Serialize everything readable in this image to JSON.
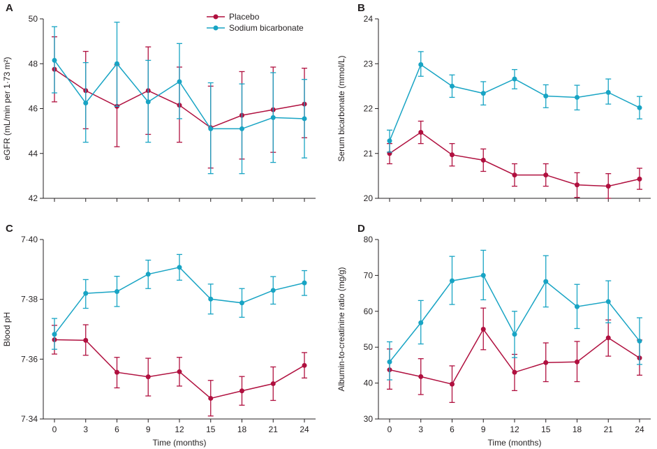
{
  "colors": {
    "placebo": "#b0103f",
    "bicarbonate": "#18a4c4",
    "axis": "#231f20"
  },
  "chart_data": [
    {
      "panel": "A",
      "type": "line",
      "ylabel": "eGFR (mL/min per 1·73 m²)",
      "xlabel": "",
      "ylim": [
        42,
        50
      ],
      "yticks": [
        42,
        44,
        46,
        48,
        50
      ],
      "ytick_labels": [
        "42",
        "44",
        "46",
        "48",
        "50"
      ],
      "legend": {
        "position": "top-center",
        "entries": [
          "Placebo",
          "Sodium bicarbonate"
        ]
      },
      "series": [
        {
          "name": "Placebo",
          "color": "placebo",
          "x": [
            0,
            3,
            6,
            9,
            12,
            15,
            18,
            21,
            24
          ],
          "y": [
            47.75,
            46.8,
            46.1,
            46.8,
            46.15,
            45.15,
            45.7,
            45.95,
            46.2
          ],
          "ci_low": [
            46.3,
            45.1,
            44.3,
            44.85,
            44.5,
            43.35,
            43.75,
            44.05,
            44.7
          ],
          "ci_high": [
            49.2,
            48.55,
            47.95,
            48.75,
            47.85,
            47.0,
            47.65,
            47.85,
            47.8
          ]
        },
        {
          "name": "Sodium bicarbonate",
          "color": "bicarbonate",
          "x": [
            0,
            3,
            6,
            9,
            12,
            15,
            18,
            21,
            24
          ],
          "y": [
            48.15,
            46.25,
            48.0,
            46.3,
            47.2,
            45.1,
            45.1,
            45.6,
            45.55
          ],
          "ci_low": [
            46.7,
            44.5,
            46.1,
            44.5,
            45.55,
            43.1,
            43.1,
            43.6,
            43.8
          ],
          "ci_high": [
            49.65,
            48.05,
            49.85,
            48.15,
            48.9,
            47.15,
            47.1,
            47.6,
            47.3
          ]
        }
      ]
    },
    {
      "panel": "B",
      "type": "line",
      "ylabel": "Serum bicarbonate (mmol/L)",
      "xlabel": "",
      "ylim": [
        20,
        24
      ],
      "yticks": [
        20,
        21,
        22,
        23,
        24
      ],
      "ytick_labels": [
        "20",
        "21",
        "22",
        "23",
        "24"
      ],
      "series": [
        {
          "name": "Placebo",
          "color": "placebo",
          "x": [
            0,
            3,
            6,
            9,
            12,
            15,
            18,
            21,
            24
          ],
          "y": [
            21.0,
            21.47,
            20.97,
            20.85,
            20.52,
            20.52,
            20.3,
            20.27,
            20.43
          ],
          "ci_low": [
            20.77,
            21.22,
            20.72,
            20.6,
            20.27,
            20.27,
            20.02,
            20.0,
            20.2
          ],
          "ci_high": [
            21.22,
            21.72,
            21.22,
            21.1,
            20.77,
            20.77,
            20.57,
            20.55,
            20.67
          ]
        },
        {
          "name": "Sodium bicarbonate",
          "color": "bicarbonate",
          "x": [
            0,
            3,
            6,
            9,
            12,
            15,
            18,
            21,
            24
          ],
          "y": [
            21.28,
            22.98,
            22.5,
            22.34,
            22.66,
            22.28,
            22.25,
            22.36,
            22.02
          ],
          "ci_low": [
            21.03,
            22.72,
            22.25,
            22.08,
            22.44,
            22.02,
            21.97,
            22.1,
            21.77
          ],
          "ci_high": [
            21.52,
            23.27,
            22.75,
            22.6,
            22.87,
            22.53,
            22.52,
            22.66,
            22.27
          ]
        }
      ]
    },
    {
      "panel": "C",
      "type": "line",
      "ylabel": "Blood pH",
      "xlabel": "Time (months)",
      "ylim": [
        7.34,
        7.4
      ],
      "yticks": [
        7.34,
        7.36,
        7.38,
        7.4
      ],
      "ytick_labels": [
        "7·34",
        "7·36",
        "7·38",
        "7·40"
      ],
      "xticks": [
        0,
        3,
        6,
        9,
        12,
        15,
        18,
        21,
        24
      ],
      "series": [
        {
          "name": "Placebo",
          "color": "placebo",
          "x": [
            0,
            3,
            6,
            9,
            12,
            15,
            18,
            21,
            24
          ],
          "y": [
            7.3665,
            7.3663,
            7.3556,
            7.3541,
            7.3558,
            7.3469,
            7.3494,
            7.3518,
            7.3579
          ],
          "ci_low": [
            7.3617,
            7.3613,
            7.3504,
            7.3477,
            7.351,
            7.341,
            7.3446,
            7.3462,
            7.3537
          ],
          "ci_high": [
            7.3713,
            7.3715,
            7.3606,
            7.3603,
            7.3606,
            7.3529,
            7.3542,
            7.3574,
            7.3622
          ]
        },
        {
          "name": "Sodium bicarbonate",
          "color": "bicarbonate",
          "x": [
            0,
            3,
            6,
            9,
            12,
            15,
            18,
            21,
            24
          ],
          "y": [
            7.3683,
            7.382,
            7.3826,
            7.3884,
            7.3907,
            7.3801,
            7.3788,
            7.383,
            7.3855
          ],
          "ci_low": [
            7.3633,
            7.377,
            7.3776,
            7.3836,
            7.3864,
            7.3751,
            7.374,
            7.3784,
            7.3813
          ],
          "ci_high": [
            7.3736,
            7.3866,
            7.3877,
            7.3931,
            7.395,
            7.3851,
            7.3836,
            7.3876,
            7.3896
          ]
        }
      ]
    },
    {
      "panel": "D",
      "type": "line",
      "ylabel": "Albumin-to-creatinine ratio (mg/g)",
      "xlabel": "Time (months)",
      "ylim": [
        30,
        80
      ],
      "yticks": [
        30,
        40,
        50,
        60,
        70,
        80
      ],
      "ytick_labels": [
        "30",
        "40",
        "50",
        "60",
        "70",
        "80"
      ],
      "xticks": [
        0,
        3,
        6,
        9,
        12,
        15,
        18,
        21,
        24
      ],
      "series": [
        {
          "name": "Placebo",
          "color": "placebo",
          "x": [
            0,
            3,
            6,
            9,
            12,
            15,
            18,
            21,
            24
          ],
          "y": [
            43.7,
            41.8,
            39.7,
            55.0,
            43.0,
            45.7,
            45.9,
            52.6,
            47.0
          ],
          "ci_low": [
            38.3,
            36.8,
            34.6,
            49.3,
            37.9,
            40.4,
            40.4,
            47.5,
            42.2
          ],
          "ci_high": [
            49.5,
            46.8,
            44.8,
            60.9,
            48.0,
            51.2,
            51.6,
            57.6,
            52.0
          ]
        },
        {
          "name": "Sodium bicarbonate",
          "color": "bicarbonate",
          "x": [
            0,
            3,
            6,
            9,
            12,
            15,
            18,
            21,
            24
          ],
          "y": [
            45.9,
            56.8,
            68.5,
            70.0,
            53.6,
            68.3,
            61.3,
            62.7,
            51.7
          ],
          "ci_low": [
            40.9,
            50.9,
            61.9,
            63.2,
            47.1,
            61.2,
            55.2,
            56.8,
            45.2
          ],
          "ci_high": [
            51.5,
            63.0,
            75.3,
            77.0,
            60.0,
            75.5,
            67.5,
            68.5,
            58.2
          ]
        }
      ]
    }
  ]
}
